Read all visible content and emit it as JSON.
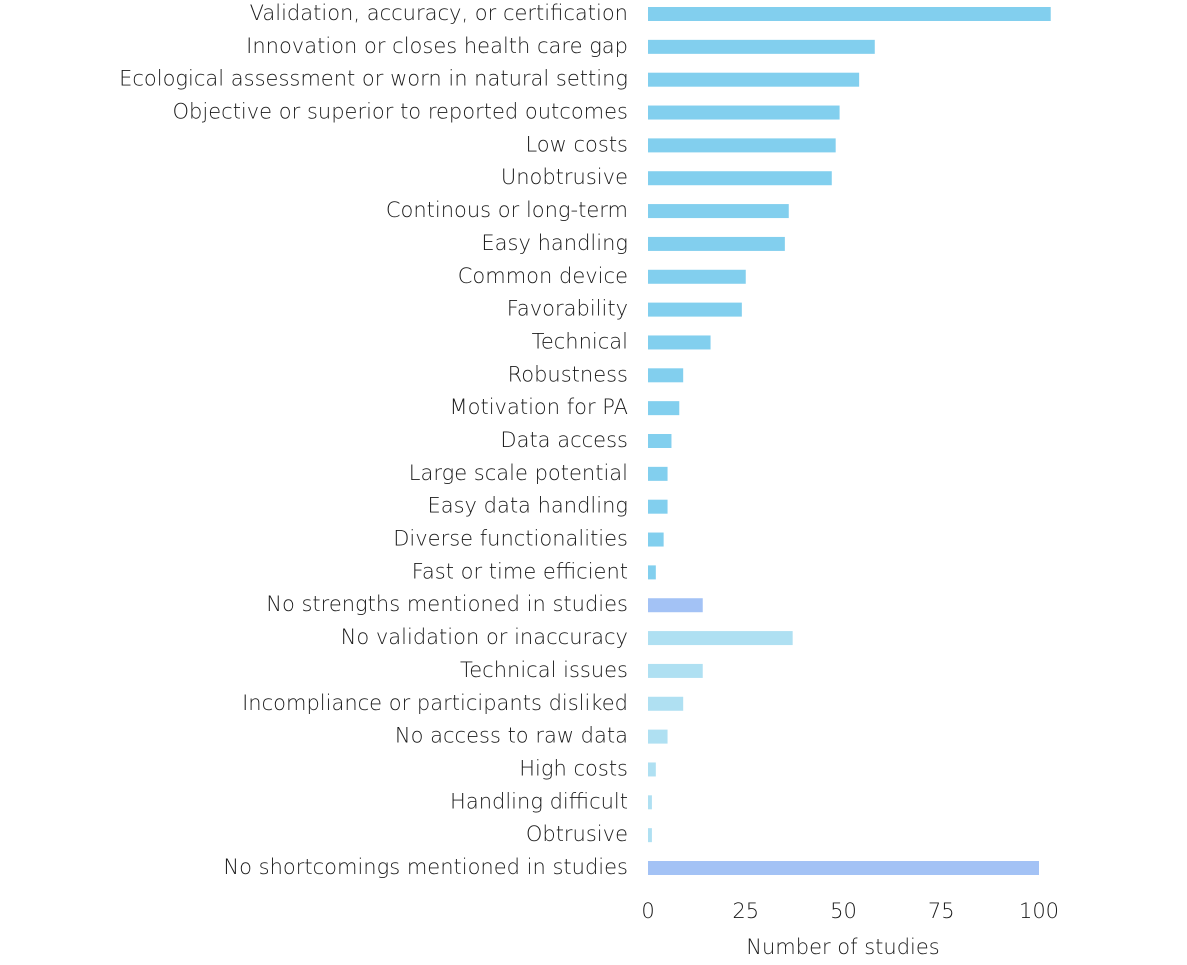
{
  "chart_data": {
    "type": "barh",
    "categories": [
      "Validation, accuracy, or certification",
      "Innovation or closes health care gap",
      "Ecological assessment or worn in natural setting",
      "Objective or superior to reported outcomes",
      "Low costs",
      "Unobtrusive",
      "Continous or long-term",
      "Easy handling",
      "Common device",
      "Favorability",
      "Technical",
      "Robustness",
      "Motivation for PA",
      "Data access",
      "Large scale potential",
      "Easy data handling",
      "Diverse functionalities",
      "Fast or time efficient",
      "No strengths mentioned in studies",
      "No validation or inaccuracy",
      "Technical issues",
      "Incompliance or participants disliked",
      "No access to raw data",
      "High costs",
      "Handling difficult",
      "Obtrusive",
      "No shortcomings mentioned in studies"
    ],
    "values": [
      103,
      58,
      54,
      49,
      48,
      47,
      36,
      35,
      25,
      24,
      16,
      9,
      8,
      6,
      5,
      5,
      4,
      2,
      14,
      37,
      14,
      9,
      5,
      2,
      1,
      1,
      100
    ],
    "colors": [
      "#82cfee",
      "#82cfee",
      "#82cfee",
      "#82cfee",
      "#82cfee",
      "#82cfee",
      "#82cfee",
      "#82cfee",
      "#82cfee",
      "#82cfee",
      "#82cfee",
      "#82cfee",
      "#82cfee",
      "#82cfee",
      "#82cfee",
      "#82cfee",
      "#82cfee",
      "#82cfee",
      "#a3c2f5",
      "#afe0f2",
      "#afe0f2",
      "#afe0f2",
      "#afe0f2",
      "#afe0f2",
      "#afe0f2",
      "#afe0f2",
      "#a3c2f5"
    ],
    "xlim": [
      0,
      105
    ],
    "xticks": [
      0,
      25,
      50,
      75,
      100
    ],
    "x_label": "Number of studies"
  }
}
